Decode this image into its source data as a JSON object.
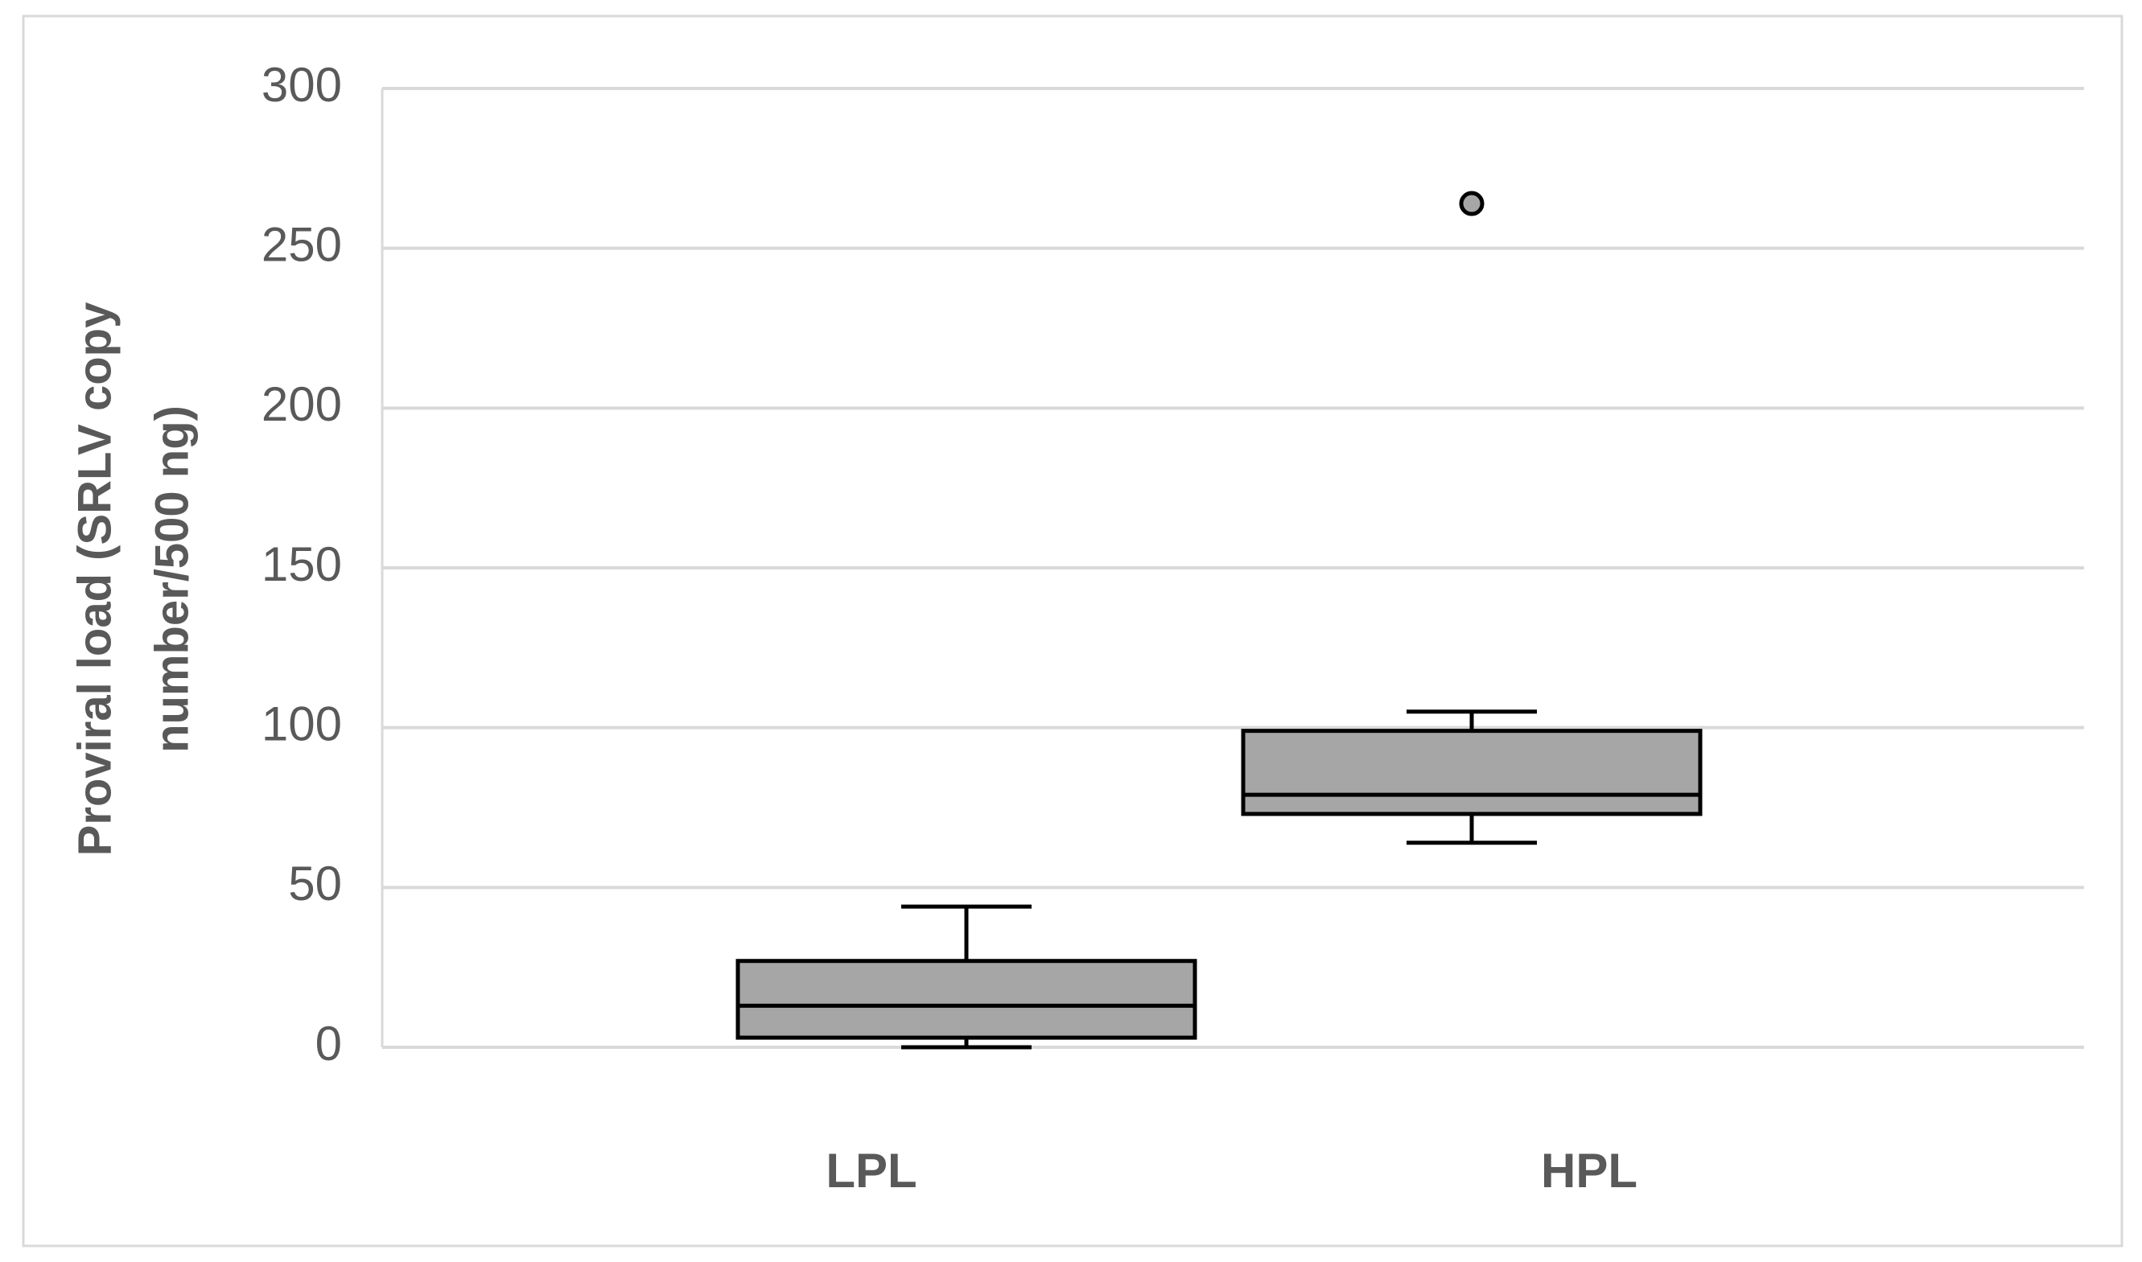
{
  "chart_data": {
    "type": "box",
    "ylabel_lines": [
      "Proviral load (SRLV copy",
      "number/500 ng)"
    ],
    "categories": [
      "LPL",
      "HPL"
    ],
    "boxes": [
      {
        "min": 0,
        "q1": 3,
        "median": 13,
        "q3": 27,
        "max": 44,
        "outliers": []
      },
      {
        "min": 64,
        "q1": 73,
        "median": 79,
        "q3": 99,
        "max": 105,
        "outliers": [
          264
        ]
      }
    ],
    "color": "#a6a6a6",
    "ylim": [
      0,
      300
    ],
    "yticks": [
      0,
      50,
      100,
      150,
      200,
      250,
      300
    ],
    "grid": true
  }
}
